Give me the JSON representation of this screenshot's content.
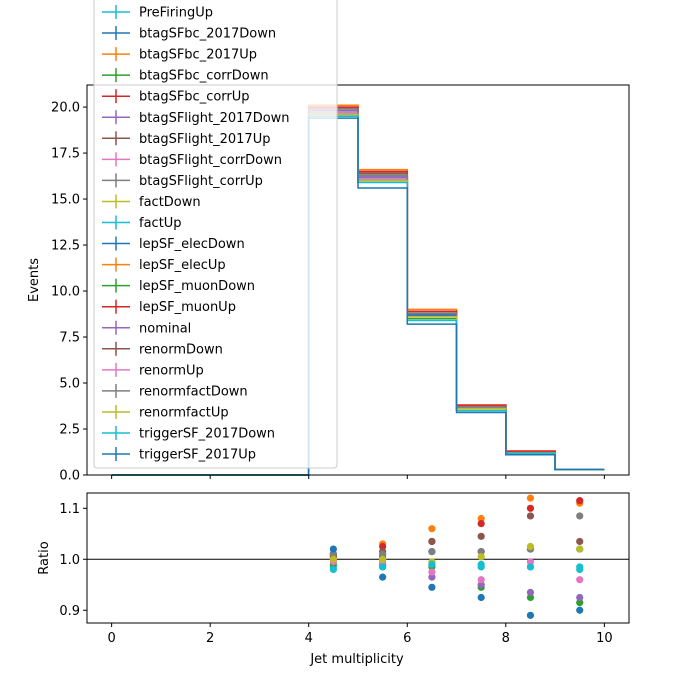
{
  "chart_data": [
    {
      "type": "line",
      "panel": "top",
      "xlabel": "",
      "ylabel": "Events",
      "xlim": [
        -0.5,
        10.5
      ],
      "ylim": [
        0,
        21.2
      ],
      "xticks": [
        "0",
        "2",
        "4",
        "6",
        "8",
        "10"
      ],
      "yticks": [
        "0.0",
        "2.5",
        "5.0",
        "7.5",
        "10.0",
        "12.5",
        "15.0",
        "17.5",
        "20.0"
      ],
      "legend_position": "top-left",
      "bin_edges": [
        0,
        1,
        2,
        3,
        4,
        5,
        6,
        7,
        8,
        9,
        10
      ],
      "series": [
        {
          "name": "PreFiringUp",
          "color": "#17becf",
          "values": [
            0,
            0,
            0,
            0,
            19.7,
            16.0,
            8.6,
            3.6,
            1.2,
            0.3
          ]
        },
        {
          "name": "btagSFbc_2017Down",
          "color": "#1f77b4",
          "values": [
            0,
            0,
            0,
            0,
            19.9,
            16.3,
            8.8,
            3.7,
            1.2,
            0.3
          ]
        },
        {
          "name": "btagSFbc_2017Up",
          "color": "#ff7f0e",
          "values": [
            0,
            0,
            0,
            0,
            19.9,
            16.3,
            8.8,
            3.7,
            1.2,
            0.3
          ]
        },
        {
          "name": "btagSFbc_corrDown",
          "color": "#2ca02c",
          "values": [
            0,
            0,
            0,
            0,
            19.6,
            16.1,
            8.6,
            3.6,
            1.2,
            0.3
          ]
        },
        {
          "name": "btagSFbc_corrUp",
          "color": "#d62728",
          "values": [
            0,
            0,
            0,
            0,
            20.0,
            16.5,
            8.9,
            3.8,
            1.3,
            0.3
          ]
        },
        {
          "name": "btagSFlight_2017Down",
          "color": "#9467bd",
          "values": [
            0,
            0,
            0,
            0,
            19.8,
            16.2,
            8.7,
            3.7,
            1.2,
            0.3
          ]
        },
        {
          "name": "btagSFlight_2017Up",
          "color": "#8c564b",
          "values": [
            0,
            0,
            0,
            0,
            19.8,
            16.3,
            8.7,
            3.7,
            1.2,
            0.3
          ]
        },
        {
          "name": "btagSFlight_corrDown",
          "color": "#e377c2",
          "values": [
            0,
            0,
            0,
            0,
            19.7,
            16.2,
            8.7,
            3.6,
            1.2,
            0.3
          ]
        },
        {
          "name": "btagSFlight_corrUp",
          "color": "#7f7f7f",
          "values": [
            0,
            0,
            0,
            0,
            19.8,
            16.3,
            8.7,
            3.7,
            1.2,
            0.3
          ]
        },
        {
          "name": "factDown",
          "color": "#bcbd22",
          "values": [
            0,
            0,
            0,
            0,
            19.7,
            16.1,
            8.6,
            3.6,
            1.2,
            0.3
          ]
        },
        {
          "name": "factUp",
          "color": "#17becf",
          "values": [
            0,
            0,
            0,
            0,
            19.6,
            16.0,
            8.6,
            3.6,
            1.2,
            0.3
          ]
        },
        {
          "name": "lepSF_elecDown",
          "color": "#1f77b4",
          "values": [
            0,
            0,
            0,
            0,
            19.8,
            16.2,
            8.7,
            3.6,
            1.2,
            0.3
          ]
        },
        {
          "name": "lepSF_elecUp",
          "color": "#ff7f0e",
          "values": [
            0,
            0,
            0,
            0,
            20.1,
            16.6,
            9.0,
            3.8,
            1.3,
            0.3
          ]
        },
        {
          "name": "lepSF_muonDown",
          "color": "#2ca02c",
          "values": [
            0,
            0,
            0,
            0,
            19.5,
            16.0,
            8.5,
            3.5,
            1.1,
            0.3
          ]
        },
        {
          "name": "lepSF_muonUp",
          "color": "#d62728",
          "values": [
            0,
            0,
            0,
            0,
            20.0,
            16.5,
            8.9,
            3.8,
            1.3,
            0.3
          ]
        },
        {
          "name": "nominal",
          "color": "#9467bd",
          "values": [
            0,
            0,
            0,
            0,
            19.8,
            16.2,
            8.6,
            3.6,
            1.2,
            0.3
          ]
        },
        {
          "name": "renormDown",
          "color": "#8c564b",
          "values": [
            0,
            0,
            0,
            0,
            19.9,
            16.4,
            8.8,
            3.7,
            1.2,
            0.3
          ]
        },
        {
          "name": "renormUp",
          "color": "#e377c2",
          "values": [
            0,
            0,
            0,
            0,
            19.7,
            16.1,
            8.6,
            3.6,
            1.2,
            0.3
          ]
        },
        {
          "name": "renormfactDown",
          "color": "#7f7f7f",
          "values": [
            0,
            0,
            0,
            0,
            19.9,
            16.3,
            8.8,
            3.7,
            1.2,
            0.3
          ]
        },
        {
          "name": "renormfactUp",
          "color": "#bcbd22",
          "values": [
            0,
            0,
            0,
            0,
            19.6,
            16.0,
            8.6,
            3.6,
            1.2,
            0.3
          ]
        },
        {
          "name": "triggerSF_2017Down",
          "color": "#17becf",
          "values": [
            0,
            0,
            0,
            0,
            19.5,
            15.9,
            8.4,
            3.5,
            1.2,
            0.3
          ]
        },
        {
          "name": "triggerSF_2017Up",
          "color": "#1f77b4",
          "values": [
            0,
            0,
            0,
            0,
            19.4,
            15.6,
            8.2,
            3.4,
            1.1,
            0.3
          ]
        }
      ]
    },
    {
      "type": "scatter",
      "panel": "bottom",
      "xlabel": "Jet multiplicity",
      "ylabel": "Ratio",
      "xlim": [
        -0.5,
        10.5
      ],
      "ylim": [
        0.875,
        1.13
      ],
      "xticks": [
        "0",
        "2",
        "4",
        "6",
        "8",
        "10"
      ],
      "yticks": [
        "0.9",
        "1.0",
        "1.1"
      ],
      "reference_line": 1.0,
      "x": [
        4.5,
        5.5,
        6.5,
        7.5,
        8.5,
        9.5
      ],
      "series": [
        {
          "color": "#17becf",
          "values": [
            0.985,
            0.99,
            0.99,
            0.985,
            0.985,
            0.98
          ]
        },
        {
          "color": "#1f77b4",
          "values": [
            1.01,
            1.005,
            1.015,
            1.015,
            1.02,
            1.02
          ]
        },
        {
          "color": "#ff7f0e",
          "values": [
            1.005,
            1.03,
            1.06,
            1.08,
            1.12,
            1.11
          ]
        },
        {
          "color": "#2ca02c",
          "values": [
            0.99,
            0.985,
            0.985,
            0.945,
            0.925,
            0.915
          ]
        },
        {
          "color": "#d62728",
          "values": [
            1.01,
            1.025,
            1.035,
            1.07,
            1.1,
            1.115
          ]
        },
        {
          "color": "#9467bd",
          "values": [
            1.0,
            0.99,
            0.965,
            0.95,
            0.935,
            0.925
          ]
        },
        {
          "color": "#8c564b",
          "values": [
            1.005,
            1.015,
            1.035,
            1.045,
            1.085,
            1.035
          ]
        },
        {
          "color": "#e377c2",
          "values": [
            0.995,
            0.995,
            0.975,
            0.96,
            0.995,
            0.96
          ]
        },
        {
          "color": "#7f7f7f",
          "values": [
            1.01,
            1.01,
            1.015,
            1.015,
            1.02,
            1.085
          ]
        },
        {
          "color": "#bcbd22",
          "values": [
            1.0,
            1.0,
            0.995,
            1.005,
            1.025,
            1.02
          ]
        },
        {
          "color": "#17becf",
          "values": [
            0.98,
            0.985,
            0.99,
            0.99,
            0.985,
            0.985
          ]
        },
        {
          "color": "#1f77b4",
          "values": [
            1.02,
            0.965,
            0.945,
            0.925,
            0.89,
            0.9
          ]
        }
      ]
    }
  ]
}
